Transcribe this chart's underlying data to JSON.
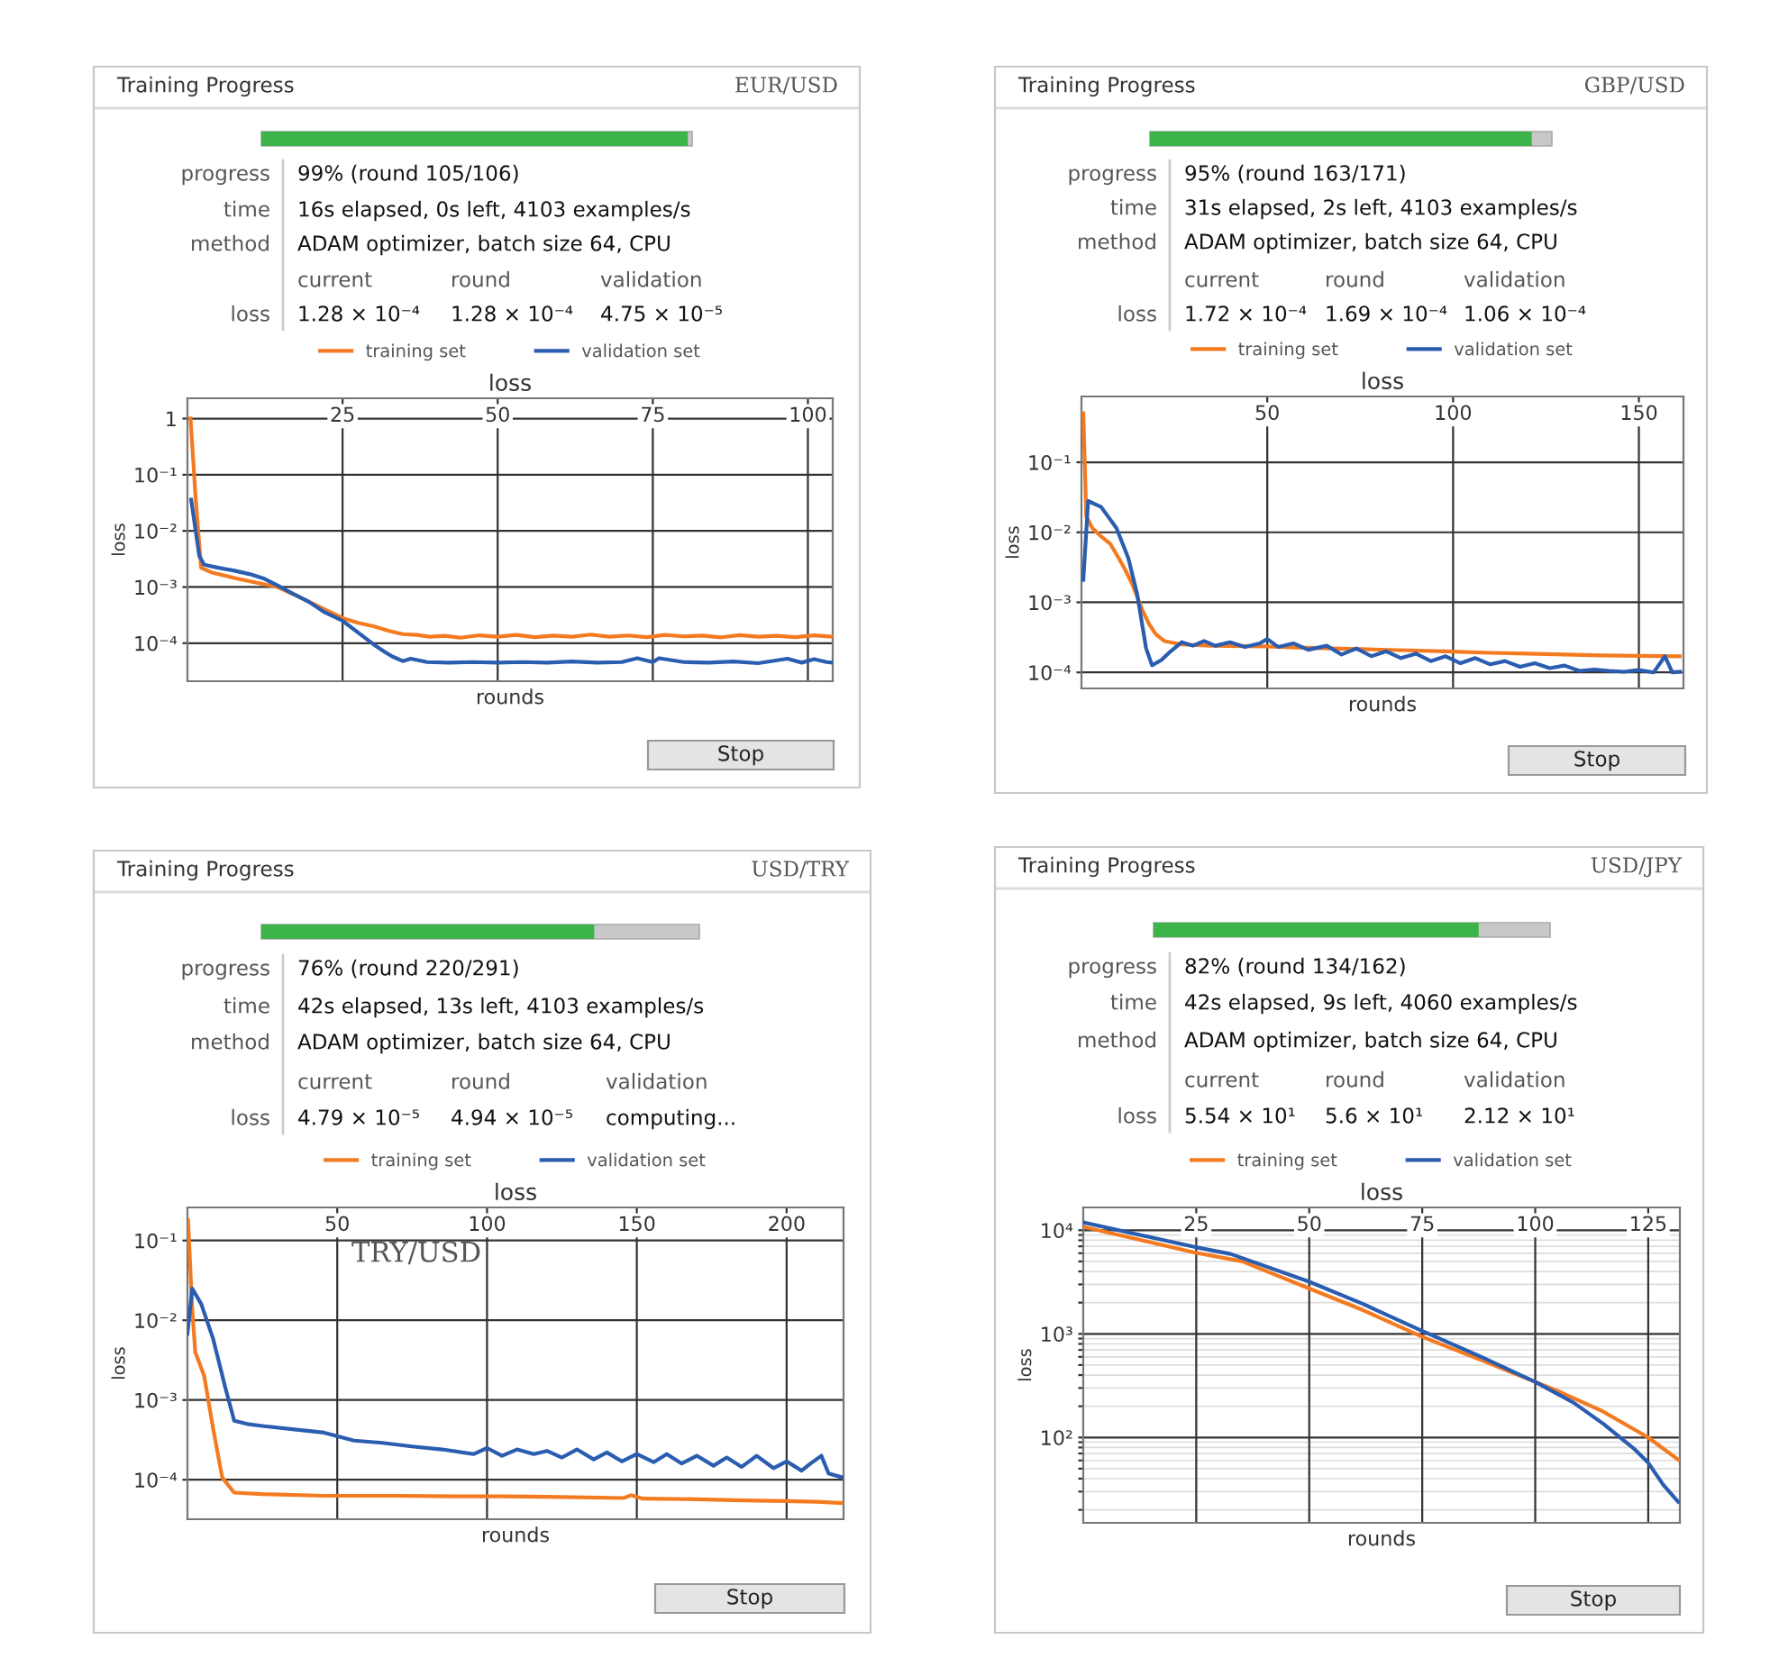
{
  "chart_data": [
    {
      "type": "other",
      "title": "Training Progress",
      "subtitle": "EUR/USD",
      "values": [
        99
      ],
      "value_labels": [
        "99% (round 105/106)"
      ],
      "color": "#3cb44a",
      "annotations": [
        "progress",
        "time",
        "16s elapsed, 0s left, 4103 examples/s",
        "method",
        "ADAM optimizer, batch size 64, CPU",
        "current",
        "round",
        "validation",
        "loss",
        "1.28 × 10⁻⁴",
        "1.28 × 10⁻⁴",
        "4.75 × 10⁻⁵",
        "Stop"
      ]
    },
    {
      "type": "line",
      "title": "loss",
      "xlabel": "rounds",
      "ylabel": "loss",
      "log": "y",
      "grid": true,
      "legend": "top",
      "xlim": [
        0,
        104
      ],
      "xticks": [
        25,
        50,
        75,
        100
      ],
      "ylim": [
        2.1e-05,
        2.3
      ],
      "yticks": [
        {
          "value": 1,
          "label": "1"
        },
        {
          "value": 0.1,
          "label": "10⁻¹"
        },
        {
          "value": 0.01,
          "label": "10⁻²"
        },
        {
          "value": 0.001,
          "label": "10⁻³"
        },
        {
          "value": 0.0001,
          "label": "10⁻⁴"
        }
      ],
      "series": [
        {
          "name": "training set",
          "color": "#f47a20",
          "x": [
            0.5,
            1.3,
            2.2,
            4,
            7.6,
            11,
            14.3,
            17,
            20,
            22.5,
            25,
            27.5,
            30,
            32.5,
            34.7,
            37,
            39,
            41.5,
            44,
            47,
            50,
            53,
            56,
            59,
            62,
            65,
            68,
            71,
            74,
            77,
            80,
            83,
            86,
            89,
            92,
            95,
            98,
            101,
            104
          ],
          "values": [
            1,
            0.041,
            0.0022,
            0.0018,
            0.00145,
            0.0012,
            0.00102,
            0.00075,
            0.00052,
            0.00038,
            0.00028,
            0.00023,
            0.0002,
            0.000165,
            0.000145,
            0.00014,
            0.00013,
            0.000135,
            0.000125,
            0.000138,
            0.00013,
            0.00014,
            0.000128,
            0.000136,
            0.00013,
            0.000142,
            0.00013,
            0.000137,
            0.000128,
            0.00014,
            0.000132,
            0.000136,
            0.000127,
            0.000139,
            0.00013,
            0.000135,
            0.000128,
            0.000138,
            0.00013
          ]
        },
        {
          "name": "validation set",
          "color": "#2a5db0",
          "x": [
            0.6,
            1.9,
            2.7,
            5,
            7.6,
            10,
            12.4,
            15,
            17.2,
            19.5,
            22,
            25,
            28,
            30,
            31.8,
            33,
            34.7,
            36,
            38.6,
            42,
            46,
            50,
            54,
            58,
            62,
            66,
            70,
            72.5,
            75,
            76,
            80,
            84,
            88,
            92,
            96.7,
            99,
            101,
            103,
            104
          ],
          "values": [
            0.036,
            0.0036,
            0.0025,
            0.0022,
            0.00195,
            0.0017,
            0.0014,
            0.001,
            0.00074,
            0.00055,
            0.00036,
            0.00025,
            0.00014,
            9.5e-05,
            7e-05,
            5.8e-05,
            4.8e-05,
            5.3e-05,
            4.6e-05,
            4.5e-05,
            4.6e-05,
            4.5e-05,
            4.6e-05,
            4.5e-05,
            4.7e-05,
            4.5e-05,
            4.6e-05,
            5.4e-05,
            4.6e-05,
            5.4e-05,
            4.6e-05,
            4.5e-05,
            4.7e-05,
            4.4e-05,
            5.3e-05,
            4.5e-05,
            5.2e-05,
            4.6e-05,
            4.5e-05
          ]
        }
      ]
    },
    {
      "type": "other",
      "title": "Training Progress",
      "subtitle": "GBP/USD",
      "values": [
        95
      ],
      "value_labels": [
        "95% (round 163/171)"
      ],
      "color": "#3cb44a",
      "annotations": [
        "progress",
        "time",
        "31s elapsed, 2s left, 4103 examples/s",
        "method",
        "ADAM optimizer, batch size 64, CPU",
        "current",
        "round",
        "validation",
        "loss",
        "1.72 × 10⁻⁴",
        "1.69 × 10⁻⁴",
        "1.06 × 10⁻⁴",
        "Stop"
      ]
    },
    {
      "type": "line",
      "title": "loss",
      "xlabel": "rounds",
      "ylabel": "loss",
      "log": "y",
      "grid": true,
      "legend": "top",
      "xlim": [
        0,
        162
      ],
      "xticks": [
        50,
        100,
        150
      ],
      "ylim": [
        5.9e-05,
        0.87
      ],
      "yticks": [
        {
          "value": 0.1,
          "label": "10⁻¹"
        },
        {
          "value": 0.01,
          "label": "10⁻²"
        },
        {
          "value": 0.001,
          "label": "10⁻³"
        },
        {
          "value": 0.0001,
          "label": "10⁻⁴"
        }
      ],
      "series": [
        {
          "name": "training set",
          "color": "#f47a20",
          "x": [
            0.5,
            1.3,
            2.9,
            5,
            7.7,
            10,
            11.8,
            13.5,
            15,
            16.5,
            18.2,
            20,
            22.3,
            27,
            35,
            49.7,
            60,
            75,
            90,
            98,
            110,
            120,
            130,
            140,
            150,
            161
          ],
          "values": [
            0.5,
            0.017,
            0.0115,
            0.009,
            0.0069,
            0.0043,
            0.0029,
            0.0019,
            0.0012,
            0.00075,
            0.00049,
            0.00035,
            0.00028,
            0.00025,
            0.00024,
            0.000235,
            0.000225,
            0.000215,
            0.000205,
            0.0002,
            0.00019,
            0.000185,
            0.00018,
            0.000175,
            0.000172,
            0.00017
          ]
        },
        {
          "name": "validation set",
          "color": "#2a5db0",
          "x": [
            0.5,
            1.8,
            5.3,
            9.4,
            12.6,
            15,
            17.4,
            19,
            21.5,
            24,
            27,
            30,
            33,
            36,
            40,
            44,
            48,
            50,
            53,
            57,
            61,
            66,
            70,
            74,
            78,
            82,
            86,
            90,
            94,
            98,
            102,
            106,
            110,
            114,
            118,
            122,
            126,
            130,
            134,
            138,
            142,
            146,
            150,
            154,
            157,
            159,
            161
          ],
          "values": [
            0.0021,
            0.028,
            0.023,
            0.0115,
            0.0043,
            0.0013,
            0.00022,
            0.000126,
            0.00015,
            0.0002,
            0.00027,
            0.00024,
            0.00028,
            0.00024,
            0.00027,
            0.00023,
            0.00026,
            0.0003,
            0.00023,
            0.00026,
            0.00021,
            0.00024,
            0.00018,
            0.00022,
            0.00017,
            0.0002,
            0.00016,
            0.000185,
            0.000145,
            0.00017,
            0.000135,
            0.00016,
            0.00013,
            0.000145,
            0.00012,
            0.000135,
            0.000115,
            0.000125,
            0.000105,
            0.00011,
            0.000105,
            0.000102,
            0.000108,
            0.0001,
            0.00017,
            0.0001,
            0.000102
          ]
        }
      ]
    },
    {
      "type": "other",
      "title": "Training Progress",
      "subtitle": "USD/TRY",
      "values": [
        76
      ],
      "value_labels": [
        "76% (round 220/291)"
      ],
      "color": "#3cb44a",
      "annotations": [
        "progress",
        "time",
        "42s elapsed, 13s left, 4103 examples/s",
        "method",
        "ADAM optimizer, batch size 64, CPU",
        "current",
        "round",
        "validation",
        "loss",
        "4.79 × 10⁻⁵",
        "4.94 × 10⁻⁵",
        "computing...",
        "Stop"
      ]
    },
    {
      "type": "line",
      "title": "loss",
      "xlabel": "rounds",
      "ylabel": "loss",
      "log": "y",
      "grid": true,
      "legend": "top",
      "annotations": [
        "TRY/USD"
      ],
      "xlim": [
        0,
        219
      ],
      "xticks": [
        50,
        100,
        150,
        200
      ],
      "ylim": [
        3.2e-05,
        0.26
      ],
      "yticks": [
        {
          "value": 0.1,
          "label": "10⁻¹"
        },
        {
          "value": 0.01,
          "label": "10⁻²"
        },
        {
          "value": 0.001,
          "label": "10⁻³"
        },
        {
          "value": 0.0001,
          "label": "10⁻⁴"
        }
      ],
      "series": [
        {
          "name": "training set",
          "color": "#f47a20",
          "x": [
            0.2,
            1.6,
            2.6,
            5.6,
            8.6,
            11.6,
            15.6,
            25,
            45.6,
            70,
            90,
            105.6,
            120,
            145.6,
            148,
            152,
            170,
            185.6,
            200,
            210,
            218.6
          ],
          "values": [
            0.18,
            0.0138,
            0.004,
            0.002,
            0.00043,
            0.000107,
            6.9e-05,
            6.6e-05,
            6.3e-05,
            6.3e-05,
            6.2e-05,
            6.2e-05,
            6.1e-05,
            5.9e-05,
            6.4e-05,
            5.8e-05,
            5.7e-05,
            5.5e-05,
            5.4e-05,
            5.3e-05,
            5.1e-05
          ]
        },
        {
          "name": "validation set",
          "color": "#2a5db0",
          "x": [
            0,
            1.6,
            4.6,
            8.6,
            12.6,
            15.6,
            20,
            25.6,
            35,
            45.6,
            55.6,
            65,
            75.6,
            85,
            95.6,
            100,
            105,
            110,
            115.6,
            120,
            125,
            130,
            135.6,
            140,
            145,
            150,
            155.6,
            160,
            165,
            170,
            175.6,
            180,
            185,
            190,
            195.6,
            200,
            205,
            208,
            211.6,
            214,
            218.6
          ],
          "values": [
            0.0068,
            0.025,
            0.016,
            0.0058,
            0.00145,
            0.00055,
            0.0005,
            0.00047,
            0.00043,
            0.00039,
            0.00031,
            0.00029,
            0.00026,
            0.00024,
            0.00021,
            0.00025,
            0.0002,
            0.00024,
            0.00021,
            0.00023,
            0.00019,
            0.00024,
            0.00018,
            0.00022,
            0.00017,
            0.00021,
            0.000166,
            0.00021,
            0.00016,
            0.0002,
            0.00015,
            0.00019,
            0.000145,
            0.0002,
            0.00014,
            0.00017,
            0.00013,
            0.00016,
            0.0002,
            0.00012,
            0.000107
          ]
        }
      ]
    },
    {
      "type": "other",
      "title": "Training Progress",
      "subtitle": "USD/JPY",
      "values": [
        82
      ],
      "value_labels": [
        "82% (round 134/162)"
      ],
      "color": "#3cb44a",
      "annotations": [
        "progress",
        "time",
        "42s elapsed, 9s left, 4060 examples/s",
        "method",
        "ADAM optimizer, batch size 64, CPU",
        "current",
        "round",
        "validation",
        "loss",
        "5.54 × 10¹",
        "5.6 × 10¹",
        "2.12 × 10¹",
        "Stop"
      ]
    },
    {
      "type": "line",
      "title": "loss",
      "xlabel": "rounds",
      "ylabel": "loss",
      "log": "y",
      "grid": true,
      "legend": "top",
      "xlim": [
        0,
        132
      ],
      "xticks": [
        25,
        50,
        75,
        100,
        125
      ],
      "ylim": [
        15,
        16600
      ],
      "yticks": [
        {
          "value": 20,
          "label": null
        },
        {
          "value": 30,
          "label": null
        },
        {
          "value": 40,
          "label": null
        },
        {
          "value": 50,
          "label": null
        },
        {
          "value": 60,
          "label": null
        },
        {
          "value": 70,
          "label": null
        },
        {
          "value": 80,
          "label": null
        },
        {
          "value": 90,
          "label": null
        },
        {
          "value": 100,
          "label": "10²"
        },
        {
          "value": 200,
          "label": null
        },
        {
          "value": 300,
          "label": null
        },
        {
          "value": 400,
          "label": null
        },
        {
          "value": 500,
          "label": null
        },
        {
          "value": 600,
          "label": null
        },
        {
          "value": 700,
          "label": null
        },
        {
          "value": 800,
          "label": null
        },
        {
          "value": 900,
          "label": null
        },
        {
          "value": 1000,
          "label": "10³"
        },
        {
          "value": 2000,
          "label": null
        },
        {
          "value": 3000,
          "label": null
        },
        {
          "value": 4000,
          "label": null
        },
        {
          "value": 5000,
          "label": null
        },
        {
          "value": 6000,
          "label": null
        },
        {
          "value": 7000,
          "label": null
        },
        {
          "value": 8000,
          "label": null
        },
        {
          "value": 9000,
          "label": null
        },
        {
          "value": 10000,
          "label": "10⁴"
        }
      ],
      "series": [
        {
          "name": "training set",
          "color": "#f47a20",
          "x": [
            0,
            24.6,
            35.2,
            49.9,
            61.8,
            74.9,
            88.4,
            99.9,
            105.7,
            115,
            125,
            131.6
          ],
          "values": [
            10800,
            6100,
            5000,
            2750,
            1700,
            940,
            550,
            345,
            272,
            178,
            100,
            61
          ]
        },
        {
          "name": "validation set",
          "color": "#2a5db0",
          "x": [
            0,
            24.6,
            32.6,
            49.9,
            61.8,
            74.9,
            88.4,
            99.9,
            108.4,
            115,
            121.7,
            125,
            128.3,
            131.6
          ],
          "values": [
            11900,
            6900,
            5900,
            3200,
            1950,
            1070,
            590,
            345,
            218,
            136,
            79,
            57,
            35,
            24
          ]
        }
      ]
    }
  ]
}
